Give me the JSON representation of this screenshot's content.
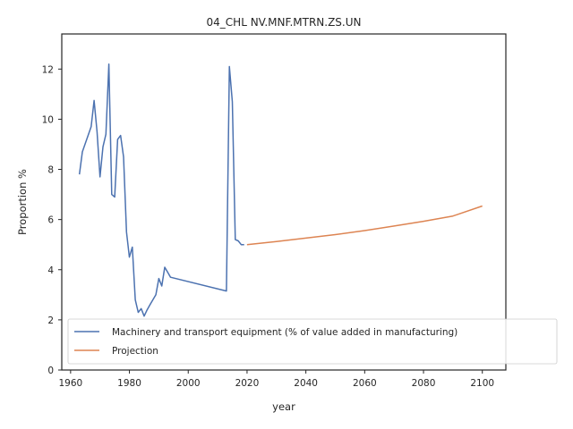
{
  "chart_data": {
    "type": "line",
    "title": "04_CHL NV.MNF.MTRN.ZS.UN",
    "xlabel": "year",
    "ylabel": "Proportion %",
    "xlim": [
      1957,
      2108
    ],
    "ylim": [
      0,
      13.4
    ],
    "xticks": [
      1960,
      1980,
      2000,
      2020,
      2040,
      2060,
      2080,
      2100
    ],
    "yticks": [
      0,
      2,
      4,
      6,
      8,
      10,
      12
    ],
    "grid": false,
    "legend_position": "lower-right",
    "series": [
      {
        "name": "Machinery and transport equipment (% of value added in manufacturing)",
        "color": "#4c72b0",
        "x": [
          1963,
          1964,
          1967,
          1968,
          1969,
          1970,
          1971,
          1972,
          1973,
          1974,
          1975,
          1976,
          1977,
          1978,
          1979,
          1980,
          1981,
          1982,
          1983,
          1984,
          1985,
          1986,
          1987,
          1988,
          1989,
          1990,
          1991,
          1992,
          1993,
          1994,
          2013,
          2014,
          2015,
          2016,
          2017,
          2018,
          2019
        ],
        "y": [
          7.8,
          8.7,
          9.7,
          10.75,
          9.5,
          7.7,
          8.9,
          9.4,
          12.2,
          7.0,
          6.9,
          9.2,
          9.35,
          8.5,
          5.5,
          4.5,
          4.9,
          2.8,
          2.3,
          2.45,
          2.15,
          2.4,
          2.6,
          2.8,
          3.0,
          3.65,
          3.35,
          4.1,
          3.9,
          3.7,
          3.15,
          12.1,
          10.7,
          5.2,
          5.15,
          5.0,
          5.0
        ]
      },
      {
        "name": "Projection",
        "color": "#dd8452",
        "x": [
          2020,
          2030,
          2040,
          2050,
          2060,
          2070,
          2080,
          2090,
          2100
        ],
        "y": [
          5.0,
          5.12,
          5.26,
          5.4,
          5.56,
          5.74,
          5.93,
          6.14,
          6.54
        ]
      }
    ]
  }
}
